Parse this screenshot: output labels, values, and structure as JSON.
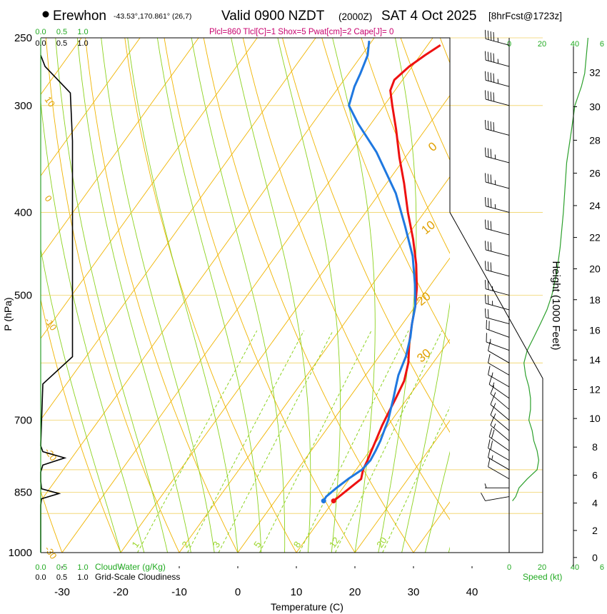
{
  "header": {
    "station": "Erewhon",
    "coords": "-43.53°,170.861° (26,7)",
    "valid": "Valid 0900 NZDT",
    "utc": "(2000Z)",
    "date": "SAT 4 Oct 2025",
    "forecast": "[8hrFcst@1723z]",
    "params": "Plcl=860 Tlcl[C]=1 Shox=5 Pwat[cm]=2 Cape[J]= 0"
  },
  "colors": {
    "temperature": "#ee1111",
    "dewpoint": "#1f78e0",
    "isotherm": "#f0b400",
    "dry_adiabat": "#f0b400",
    "moist_adiabat": "#8cd21e",
    "mixing_ratio": "#8cd21e",
    "cloud": "#000000",
    "speed": "#2ca02c",
    "isobar": "#f0d264",
    "params_text": "#c8006e",
    "cloud_text": "#22aa22"
  },
  "chart_data": {
    "type": "line",
    "title": "Erewhon skew-T sounding",
    "xlabel": "Temperature (C)",
    "ylabel": "P (hPa)",
    "y2label": "Height (1000 Feet)",
    "xlim": [
      -34,
      36
    ],
    "ylim": [
      1000,
      250
    ],
    "x_ticks": [
      "-30",
      "-20",
      "-10",
      "0",
      "10",
      "20",
      "30",
      "40"
    ],
    "x_tick_values": [
      -30,
      -20,
      -10,
      0,
      10,
      20,
      30,
      40
    ],
    "pressure_ticks": [
      "250",
      "300",
      "400",
      "500",
      "700",
      "850",
      "1000"
    ],
    "pressure_values": [
      250,
      300,
      400,
      500,
      700,
      850,
      1000
    ],
    "isobars": [
      250,
      300,
      400,
      500,
      600,
      700,
      800,
      850,
      900,
      1000
    ],
    "height_ticks": [
      "0",
      "2",
      "4",
      "6",
      "8",
      "10",
      "12",
      "14",
      "16",
      "18",
      "20",
      "22",
      "24",
      "26",
      "28",
      "30",
      "32"
    ],
    "height_values": [
      0,
      2,
      4,
      6,
      8,
      10,
      12,
      14,
      16,
      18,
      20,
      22,
      24,
      26,
      28,
      30,
      32
    ],
    "isotherm_labels": [
      {
        "text": "10",
        "p": 295,
        "offset": 15
      },
      {
        "text": "0",
        "p": 385,
        "offset": 15
      },
      {
        "text": "-10",
        "p": 535,
        "offset": 15
      },
      {
        "text": "-20",
        "p": 760,
        "offset": 15
      },
      {
        "text": "-30",
        "p": 990,
        "offset": 15
      }
    ],
    "dry_adiabat_labels": [
      {
        "text": "0",
        "p": 340,
        "t": -16
      },
      {
        "text": "10",
        "p": 425,
        "t": -7
      },
      {
        "text": "20",
        "p": 515,
        "t": 1
      },
      {
        "text": "30",
        "p": 600,
        "t": 8
      }
    ],
    "mixing_ratio_labels": [
      "1",
      "2",
      "3",
      "5",
      "8",
      "12",
      "20"
    ],
    "mixing_ratio_values": [
      1,
      2,
      3,
      5,
      8,
      12,
      20
    ],
    "series": [
      {
        "name": "Temperature",
        "points": [
          [
            10.0,
            870
          ],
          [
            10.4,
            860
          ],
          [
            11.2,
            840
          ],
          [
            12.0,
            820
          ],
          [
            11.2,
            800
          ],
          [
            10.8,
            780
          ],
          [
            10.3,
            760
          ],
          [
            9.8,
            740
          ],
          [
            9.0,
            710
          ],
          [
            8.6,
            690
          ],
          [
            8.0,
            660
          ],
          [
            7.3,
            630
          ],
          [
            5.8,
            600
          ],
          [
            3.6,
            570
          ],
          [
            1.6,
            540
          ],
          [
            0.0,
            515
          ],
          [
            -2.0,
            490
          ],
          [
            -5.0,
            460
          ],
          [
            -8.6,
            430
          ],
          [
            -12.8,
            400
          ],
          [
            -17.0,
            370
          ],
          [
            -21.0,
            345
          ],
          [
            -25.0,
            320
          ],
          [
            -28.6,
            300
          ],
          [
            -30.8,
            288
          ],
          [
            -31.4,
            280
          ],
          [
            -30.5,
            270
          ],
          [
            -29.2,
            262
          ],
          [
            -27.8,
            255
          ]
        ]
      },
      {
        "name": "Dewpoint",
        "points": [
          [
            8.3,
            870
          ],
          [
            8.2,
            860
          ],
          [
            8.9,
            840
          ],
          [
            9.8,
            820
          ],
          [
            11.0,
            800
          ],
          [
            11.3,
            780
          ],
          [
            11.0,
            760
          ],
          [
            10.6,
            740
          ],
          [
            10.0,
            720
          ],
          [
            9.4,
            700
          ],
          [
            8.5,
            680
          ],
          [
            7.6,
            660
          ],
          [
            6.6,
            640
          ],
          [
            5.6,
            620
          ],
          [
            4.6,
            590
          ],
          [
            3.0,
            560
          ],
          [
            1.6,
            540
          ],
          [
            0.0,
            515
          ],
          [
            -2.8,
            485
          ],
          [
            -6.6,
            450
          ],
          [
            -11.6,
            415
          ],
          [
            -17.2,
            380
          ],
          [
            -25.6,
            340
          ],
          [
            -32.2,
            315
          ],
          [
            -36.0,
            300
          ],
          [
            -37.4,
            285
          ],
          [
            -38.0,
            275
          ],
          [
            -39.0,
            262
          ],
          [
            -40.5,
            252
          ]
        ]
      }
    ],
    "wind_speed_label": "Speed (kt)",
    "wind_speed_ticks": [
      "0",
      "20",
      "40"
    ],
    "wind_speed_values": [
      0,
      20,
      40
    ],
    "wind_speed_profile": [
      [
        2,
        870
      ],
      [
        4,
        860
      ],
      [
        6,
        840
      ],
      [
        11,
        820
      ],
      [
        17,
        800
      ],
      [
        18,
        780
      ],
      [
        17,
        760
      ],
      [
        15,
        740
      ],
      [
        14,
        720
      ],
      [
        12,
        700
      ],
      [
        13,
        680
      ],
      [
        13,
        660
      ],
      [
        12,
        640
      ],
      [
        10,
        620
      ],
      [
        9,
        600
      ],
      [
        11,
        580
      ],
      [
        15,
        560
      ],
      [
        19,
        540
      ],
      [
        23,
        520
      ],
      [
        26,
        500
      ],
      [
        29,
        470
      ],
      [
        31,
        440
      ],
      [
        33,
        400
      ],
      [
        35,
        350
      ],
      [
        38,
        320
      ],
      [
        40,
        300
      ],
      [
        44,
        285
      ],
      [
        46,
        275
      ],
      [
        48,
        250
      ]
    ],
    "wind_barbs": [
      {
        "p": 860,
        "dir": 260,
        "kt": 10
      },
      {
        "p": 840,
        "dir": 270,
        "kt": 5
      },
      {
        "p": 820,
        "dir": 300,
        "kt": 10
      },
      {
        "p": 800,
        "dir": 300,
        "kt": 15
      },
      {
        "p": 780,
        "dir": 300,
        "kt": 20
      },
      {
        "p": 760,
        "dir": 305,
        "kt": 20
      },
      {
        "p": 740,
        "dir": 310,
        "kt": 15
      },
      {
        "p": 720,
        "dir": 310,
        "kt": 15
      },
      {
        "p": 700,
        "dir": 310,
        "kt": 15
      },
      {
        "p": 680,
        "dir": 310,
        "kt": 15
      },
      {
        "p": 660,
        "dir": 305,
        "kt": 15
      },
      {
        "p": 640,
        "dir": 300,
        "kt": 15
      },
      {
        "p": 620,
        "dir": 300,
        "kt": 10
      },
      {
        "p": 600,
        "dir": 300,
        "kt": 10
      },
      {
        "p": 580,
        "dir": 290,
        "kt": 15
      },
      {
        "p": 560,
        "dir": 290,
        "kt": 20
      },
      {
        "p": 540,
        "dir": 285,
        "kt": 20
      },
      {
        "p": 520,
        "dir": 285,
        "kt": 25
      },
      {
        "p": 500,
        "dir": 285,
        "kt": 25
      },
      {
        "p": 475,
        "dir": 285,
        "kt": 30
      },
      {
        "p": 450,
        "dir": 285,
        "kt": 30
      },
      {
        "p": 425,
        "dir": 285,
        "kt": 30
      },
      {
        "p": 400,
        "dir": 285,
        "kt": 35
      },
      {
        "p": 375,
        "dir": 285,
        "kt": 35
      },
      {
        "p": 350,
        "dir": 285,
        "kt": 35
      },
      {
        "p": 325,
        "dir": 285,
        "kt": 40
      },
      {
        "p": 300,
        "dir": 285,
        "kt": 40
      },
      {
        "p": 285,
        "dir": 285,
        "kt": 45
      },
      {
        "p": 270,
        "dir": 285,
        "kt": 45
      },
      {
        "p": 255,
        "dir": 285,
        "kt": 45
      }
    ],
    "cloud_scale_ticks": [
      "0.0",
      "0.5",
      "1.0"
    ],
    "cloud_scale_values": [
      0,
      0.5,
      1.0
    ],
    "cloudwater_label": "CloudWater (g/Kg)",
    "cloudiness_label": "Grid-Scale Cloudiness",
    "cloudiness_profile": [
      [
        0,
        1000
      ],
      [
        0,
        880
      ],
      [
        0.02,
        865
      ],
      [
        0.42,
        853
      ],
      [
        0.02,
        842
      ],
      [
        0,
        825
      ],
      [
        0,
        805
      ],
      [
        0.05,
        790
      ],
      [
        0.55,
        775
      ],
      [
        0.05,
        762
      ],
      [
        0,
        750
      ],
      [
        0.05,
        635
      ],
      [
        0.73,
        590
      ],
      [
        0.73,
        330
      ],
      [
        0.68,
        290
      ],
      [
        0.1,
        270
      ],
      [
        0,
        262
      ]
    ]
  }
}
